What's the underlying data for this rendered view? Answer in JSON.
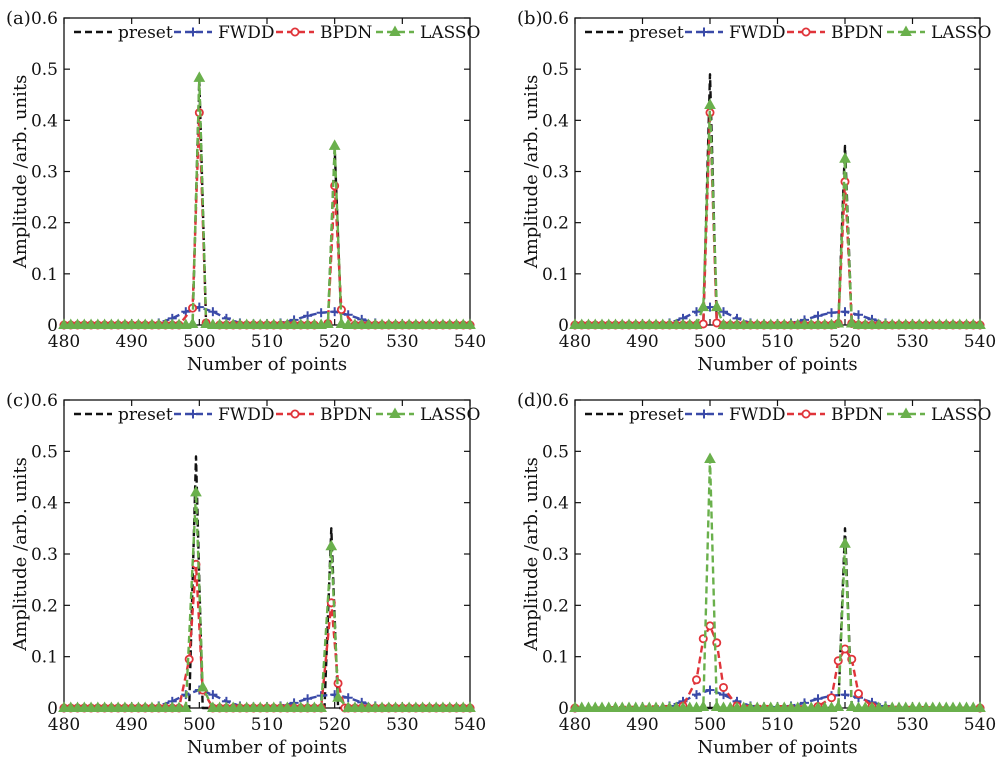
{
  "chart_data": [
    {
      "panel_label": "(a)",
      "type": "line",
      "title": "",
      "xlabel": "Number of points",
      "ylabel": "Amplitude /arb. units",
      "xlim": [
        480,
        540
      ],
      "ylim": [
        0,
        0.6
      ],
      "xticks": [
        480,
        490,
        500,
        510,
        520,
        530,
        540
      ],
      "yticks": [
        0,
        0.1,
        0.2,
        0.3,
        0.4,
        0.5,
        0.6
      ],
      "legend": [
        "preset",
        "FWDD",
        "BPDN",
        "LASSO"
      ],
      "series": [
        {
          "name": "preset",
          "color": "#111111",
          "marker": "none",
          "style": "dashed",
          "x": [
            480,
            499,
            500,
            501,
            519,
            520,
            521,
            540
          ],
          "y": [
            0,
            0,
            0.48,
            0,
            0,
            0.345,
            0,
            0
          ]
        },
        {
          "name": "FWDD",
          "color": "#3a4aa8",
          "marker": "plus",
          "style": "dashed",
          "x": [
            480,
            492,
            494,
            496,
            498,
            500,
            502,
            504,
            506,
            508,
            510,
            512,
            514,
            516,
            518,
            520,
            522,
            524,
            526,
            528,
            540
          ],
          "y": [
            0,
            0.001,
            0.004,
            0.013,
            0.026,
            0.035,
            0.026,
            0.013,
            0.004,
            0.002,
            0.002,
            0.004,
            0.01,
            0.018,
            0.024,
            0.026,
            0.02,
            0.011,
            0.004,
            0.001,
            0
          ]
        },
        {
          "name": "BPDN",
          "color": "#e0343a",
          "marker": "circle",
          "style": "dashed",
          "x": [
            480,
            497,
            499,
            500,
            501,
            503,
            517,
            519,
            520,
            521,
            523,
            540
          ],
          "y": [
            0,
            0,
            0.033,
            0.415,
            0.004,
            0,
            0,
            0.003,
            0.272,
            0.03,
            0,
            0
          ]
        },
        {
          "name": "LASSO",
          "color": "#6ab04c",
          "marker": "triangle",
          "style": "dashed",
          "x": [
            480,
            498,
            499,
            500,
            501,
            502,
            518,
            519,
            520,
            521,
            522,
            540
          ],
          "y": [
            0,
            0,
            0.002,
            0.483,
            0.002,
            0,
            0,
            0.002,
            0.35,
            0.002,
            0,
            0
          ]
        }
      ]
    },
    {
      "panel_label": "(b)",
      "type": "line",
      "title": "",
      "xlabel": "Number of points",
      "ylabel": "Amplitude /arb. units",
      "xlim": [
        480,
        540
      ],
      "ylim": [
        0,
        0.6
      ],
      "xticks": [
        480,
        490,
        500,
        510,
        520,
        530,
        540
      ],
      "yticks": [
        0,
        0.1,
        0.2,
        0.3,
        0.4,
        0.5,
        0.6
      ],
      "legend": [
        "preset",
        "FWDD",
        "BPDN",
        "LASSO"
      ],
      "series": [
        {
          "name": "preset",
          "color": "#111111",
          "marker": "none",
          "style": "dashed",
          "x": [
            480,
            499,
            500,
            501,
            519,
            520,
            521,
            540
          ],
          "y": [
            0,
            0,
            0.49,
            0,
            0,
            0.35,
            0,
            0
          ]
        },
        {
          "name": "FWDD",
          "color": "#3a4aa8",
          "marker": "plus",
          "style": "dashed",
          "x": [
            480,
            492,
            494,
            496,
            498,
            500,
            502,
            504,
            506,
            508,
            510,
            512,
            514,
            516,
            518,
            520,
            522,
            524,
            526,
            528,
            540
          ],
          "y": [
            0,
            0.001,
            0.004,
            0.013,
            0.026,
            0.035,
            0.026,
            0.013,
            0.004,
            0.002,
            0.002,
            0.004,
            0.01,
            0.018,
            0.024,
            0.026,
            0.02,
            0.011,
            0.004,
            0.001,
            0
          ]
        },
        {
          "name": "BPDN",
          "color": "#e0343a",
          "marker": "circle",
          "style": "dashed",
          "x": [
            480,
            498,
            499,
            500,
            501,
            502,
            518,
            519,
            520,
            521,
            522,
            540
          ],
          "y": [
            0,
            0,
            0.002,
            0.415,
            0.004,
            0,
            0,
            0.003,
            0.28,
            0.003,
            0,
            0
          ]
        },
        {
          "name": "LASSO",
          "color": "#6ab04c",
          "marker": "triangle",
          "style": "dashed",
          "x": [
            480,
            498,
            499,
            500,
            501,
            502,
            518,
            519,
            520,
            521,
            522,
            540
          ],
          "y": [
            0,
            0,
            0.035,
            0.43,
            0.035,
            0,
            0,
            0.003,
            0.325,
            0.003,
            0,
            0
          ]
        }
      ]
    },
    {
      "panel_label": "(c)",
      "type": "line",
      "title": "",
      "xlabel": "Number of points",
      "ylabel": "Amplitude /arb. units",
      "xlim": [
        480,
        540
      ],
      "ylim": [
        0,
        0.6
      ],
      "xticks": [
        480,
        490,
        500,
        510,
        520,
        530,
        540
      ],
      "yticks": [
        0,
        0.1,
        0.2,
        0.3,
        0.4,
        0.5,
        0.6
      ],
      "legend": [
        "preset",
        "FWDD",
        "BPDN",
        "LASSO"
      ],
      "series": [
        {
          "name": "preset",
          "color": "#111111",
          "marker": "none",
          "style": "dashed",
          "x": [
            480,
            498.5,
            499.5,
            500.5,
            518.5,
            519.5,
            520.5,
            540
          ],
          "y": [
            0,
            0,
            0.49,
            0,
            0,
            0.35,
            0,
            0
          ]
        },
        {
          "name": "FWDD",
          "color": "#3a4aa8",
          "marker": "plus",
          "style": "dashed",
          "x": [
            480,
            492,
            494,
            496,
            498,
            500,
            502,
            504,
            506,
            508,
            510,
            512,
            514,
            516,
            518,
            520,
            522,
            524,
            526,
            528,
            540
          ],
          "y": [
            0,
            0.001,
            0.004,
            0.013,
            0.026,
            0.035,
            0.026,
            0.013,
            0.004,
            0.002,
            0.002,
            0.004,
            0.01,
            0.018,
            0.024,
            0.026,
            0.02,
            0.011,
            0.004,
            0.001,
            0
          ]
        },
        {
          "name": "BPDN",
          "color": "#e0343a",
          "marker": "circle",
          "style": "dashed",
          "x": [
            480,
            497,
            498.5,
            499.5,
            500.5,
            502,
            518,
            519.5,
            520.5,
            521.5,
            540
          ],
          "y": [
            0,
            0,
            0.095,
            0.28,
            0.035,
            0,
            0,
            0.205,
            0.048,
            0,
            0
          ]
        },
        {
          "name": "LASSO",
          "color": "#6ab04c",
          "marker": "triangle",
          "style": "dashed",
          "x": [
            480,
            498,
            499.5,
            500.5,
            502,
            518,
            519.5,
            520.5,
            522,
            540
          ],
          "y": [
            0,
            0,
            0.42,
            0.04,
            0,
            0,
            0.315,
            0.02,
            0,
            0
          ]
        }
      ]
    },
    {
      "panel_label": "(d)",
      "type": "line",
      "title": "",
      "xlabel": "Number of points",
      "ylabel": "Amplitude /arb. units",
      "xlim": [
        480,
        540
      ],
      "ylim": [
        0,
        0.6
      ],
      "xticks": [
        480,
        490,
        500,
        510,
        520,
        530,
        540
      ],
      "yticks": [
        0,
        0.1,
        0.2,
        0.3,
        0.4,
        0.5,
        0.6
      ],
      "legend": [
        "preset",
        "FWDD",
        "BPDN",
        "LASSO"
      ],
      "series": [
        {
          "name": "preset",
          "color": "#111111",
          "marker": "none",
          "style": "dashed",
          "x": [
            480,
            519,
            520,
            521,
            540
          ],
          "y": [
            0,
            0,
            0.35,
            0,
            0
          ]
        },
        {
          "name": "FWDD",
          "color": "#3a4aa8",
          "marker": "plus",
          "style": "dashed",
          "x": [
            480,
            492,
            494,
            496,
            498,
            500,
            502,
            504,
            506,
            508,
            510,
            512,
            514,
            516,
            518,
            520,
            522,
            524,
            526,
            528,
            540
          ],
          "y": [
            0,
            0.001,
            0.004,
            0.013,
            0.026,
            0.035,
            0.026,
            0.013,
            0.004,
            0.002,
            0.002,
            0.004,
            0.01,
            0.018,
            0.024,
            0.026,
            0.02,
            0.011,
            0.004,
            0.001,
            0
          ]
        },
        {
          "name": "BPDN",
          "color": "#e0343a",
          "marker": "circle",
          "style": "dashed",
          "x": [
            480,
            496,
            498,
            499,
            500,
            501,
            502,
            504,
            516,
            518,
            519,
            520,
            521,
            522,
            524,
            540
          ],
          "y": [
            0,
            0.004,
            0.055,
            0.135,
            0.16,
            0.127,
            0.04,
            0.004,
            0.003,
            0.02,
            0.092,
            0.115,
            0.095,
            0.028,
            0.003,
            0
          ]
        },
        {
          "name": "LASSO",
          "color": "#6ab04c",
          "marker": "triangle",
          "style": "dashed",
          "x": [
            480,
            498,
            499,
            500,
            501,
            502,
            518,
            519,
            520,
            521,
            522,
            540
          ],
          "y": [
            0,
            0,
            0.002,
            0.485,
            0.002,
            0,
            0,
            0.002,
            0.32,
            0.002,
            0,
            0
          ]
        }
      ]
    }
  ]
}
